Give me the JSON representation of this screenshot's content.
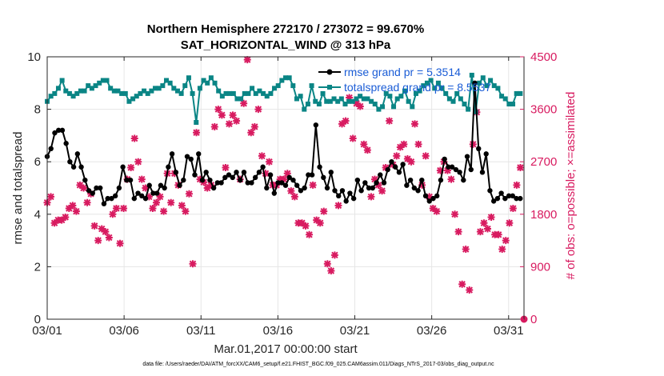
{
  "chart_data": {
    "type": "line",
    "title": "Northern Hemisphere 272170 / 273072 = 99.670%",
    "subtitle": "SAT_HORIZONTAL_WIND @ 313 hPa",
    "xlabel": "Mar.01,2017 00:00:00 start",
    "ylabel_left": "rmse and totalspread",
    "ylabel_right": "# of obs: o=possible; ×=assimilated",
    "x_ticks": [
      "03/01",
      "03/06",
      "03/11",
      "03/16",
      "03/21",
      "03/26",
      "03/31"
    ],
    "x_tick_days": [
      1,
      6,
      11,
      16,
      21,
      26,
      31
    ],
    "x_range_days": [
      1,
      32
    ],
    "ylim_left": [
      0,
      10
    ],
    "yticks_left": [
      "0",
      "2",
      "4",
      "6",
      "8",
      "10"
    ],
    "ylim_right": [
      0,
      4500
    ],
    "yticks_right": [
      "0",
      "900",
      "1800",
      "2700",
      "3600",
      "4500"
    ],
    "footer": "data file: /Users/raeder/DAI/ATM_forcXX/CAM6_setup/f.e21.FHIST_BGC.f09_025.CAM6assim.011/Diags_NTrS_2017-03/obs_diag_output.nc",
    "colors": {
      "rmse": "#000000",
      "spread": "#0a8585",
      "obs": "#d81b60",
      "legend_text": "#1a5cd6",
      "right_axis": "#d81b60"
    },
    "series": [
      {
        "name": "rmse grand pr = 5.3514",
        "axis": "left",
        "values": [
          6.2,
          6.5,
          7.1,
          7.2,
          7.2,
          6.7,
          6.0,
          5.8,
          6.3,
          5.8,
          5.3,
          4.9,
          4.8,
          5.0,
          5.0,
          4.4,
          4.6,
          4.6,
          4.7,
          5.0,
          5.8,
          5.3,
          5.3,
          4.6,
          4.8,
          4.7,
          4.6,
          5.1,
          4.8,
          4.8,
          5.1,
          5.0,
          5.8,
          6.3,
          5.6,
          5.1,
          5.3,
          6.2,
          6.1,
          5.5,
          6.3,
          5.3,
          5.6,
          5.3,
          5.0,
          5.2,
          5.2,
          5.4,
          5.5,
          5.4,
          5.6,
          5.3,
          5.6,
          5.2,
          5.2,
          5.4,
          5.6,
          5.8,
          5.0,
          5.5,
          4.8,
          5.2,
          5.2,
          5.1,
          5.4,
          5.3,
          5.1,
          4.9,
          5.0,
          5.5,
          5.5,
          7.4,
          5.8,
          5.4,
          5.0,
          5.6,
          4.9,
          4.7,
          4.9,
          4.5,
          4.8,
          4.6,
          5.3,
          4.9,
          5.2,
          5.0,
          5.0,
          5.2,
          5.5,
          5.2,
          5.7,
          6.0,
          5.8,
          5.6,
          5.9,
          5.1,
          5.3,
          5.0,
          4.9,
          5.3,
          4.7,
          4.5,
          4.6,
          4.7,
          5.3,
          6.1,
          5.8,
          5.8,
          5.7,
          5.6,
          5.3,
          6.2,
          5.7,
          9.0,
          6.5,
          5.6,
          6.3,
          4.9,
          4.5,
          4.6,
          4.8,
          4.6,
          4.7,
          4.7,
          4.6,
          4.6
        ]
      },
      {
        "name": "totalspread grand pr = 8.5537",
        "axis": "left",
        "values": [
          8.3,
          8.5,
          8.6,
          8.8,
          9.1,
          8.7,
          8.6,
          8.5,
          8.6,
          8.7,
          8.7,
          8.9,
          8.8,
          8.9,
          9.0,
          9.1,
          9.1,
          8.8,
          8.7,
          8.7,
          8.6,
          8.6,
          8.3,
          8.4,
          8.5,
          8.6,
          8.7,
          8.6,
          8.7,
          8.8,
          8.8,
          8.9,
          9.1,
          9.0,
          8.8,
          8.7,
          8.6,
          8.9,
          9.2,
          8.6,
          7.5,
          8.8,
          9.1,
          9.0,
          9.2,
          9.0,
          8.7,
          8.5,
          8.6,
          8.6,
          8.6,
          8.4,
          8.4,
          8.6,
          8.6,
          8.8,
          8.6,
          8.7,
          8.6,
          8.5,
          8.6,
          8.8,
          8.9,
          9.1,
          9.2,
          9.2,
          8.9,
          8.4,
          8.5,
          8.0,
          8.2,
          8.9,
          8.3,
          8.2,
          8.6,
          8.3,
          8.3,
          8.4,
          8.3,
          8.4,
          8.2,
          8.3,
          8.3,
          8.4,
          8.5,
          8.4,
          8.4,
          8.3,
          8.2,
          8.0,
          8.1,
          8.6,
          8.5,
          8.1,
          8.4,
          8.5,
          8.7,
          8.3,
          8.1,
          8.6,
          8.7,
          8.9,
          9.0,
          9.1,
          8.8,
          9.0,
          8.8,
          8.6,
          8.4,
          8.3,
          8.6,
          8.4,
          8.2,
          8.0,
          9.3,
          7.9,
          9.0,
          9.2,
          8.9,
          9.1,
          8.9,
          8.8,
          8.5,
          8.4,
          8.2,
          8.2,
          8.6,
          8.6
        ]
      },
      {
        "name": "obs assimilated",
        "axis": "right",
        "values": [
          2000,
          2100,
          1650,
          1700,
          1700,
          1750,
          1900,
          1950,
          1850,
          2300,
          2250,
          2000,
          2150,
          1600,
          1350,
          1550,
          1500,
          1400,
          1800,
          1900,
          1300,
          1900,
          2400,
          2600,
          3100,
          2700,
          2400,
          2250,
          2100,
          1900,
          2000,
          2100,
          1850,
          2500,
          2000,
          2500,
          2300,
          1950,
          1850,
          2150,
          950,
          3200,
          2400,
          2350,
          2250,
          2300,
          3300,
          3600,
          3500,
          2600,
          3350,
          3500,
          3400,
          2400,
          3700,
          4450,
          3200,
          3300,
          3600,
          2800,
          2500,
          2700,
          2300,
          2300,
          2400,
          2400,
          2500,
          2200,
          2100,
          1650,
          1650,
          1600,
          1450,
          2300,
          1700,
          1650,
          1850,
          950,
          830,
          1100,
          1950,
          3350,
          3400,
          3800,
          3100,
          3700,
          3650,
          3000,
          2900,
          2100,
          2400,
          2300,
          2200,
          2600,
          3400,
          2650,
          2800,
          2950,
          3000,
          2750,
          2700,
          3350,
          3000,
          2300,
          2800,
          2100,
          1900,
          1850,
          2550,
          2700,
          2550,
          2400,
          1800,
          1500,
          600,
          1200,
          500,
          3000,
          3550,
          1500,
          1650,
          1550,
          1750,
          1450,
          1450,
          1200,
          1350,
          1650,
          1900,
          2300,
          2600
        ]
      },
      {
        "name": "obs possible",
        "axis": "right",
        "values": [
          0
        ]
      }
    ]
  }
}
